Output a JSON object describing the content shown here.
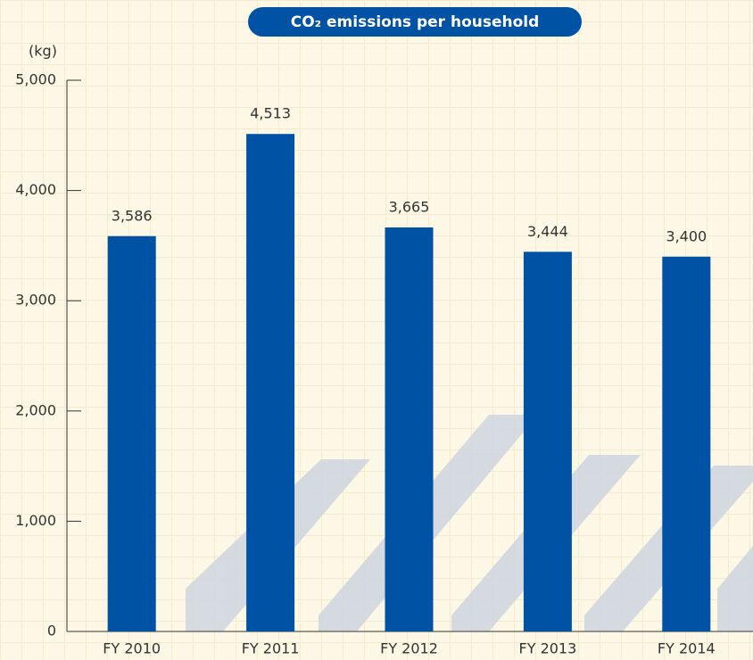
{
  "chart_data": {
    "type": "bar",
    "title": "CO₂ emissions per household",
    "y_label": "(kg)",
    "categories": [
      "FY 2010",
      "FY 2011",
      "FY 2012",
      "FY 2013",
      "FY 2014"
    ],
    "values": [
      3586,
      4513,
      3665,
      3444,
      3400
    ],
    "value_labels": [
      "3,586",
      "4,513",
      "3,665",
      "3,444",
      "3,400"
    ],
    "color": "#0052a4",
    "ylim": [
      0,
      5000
    ],
    "yticks": [
      0,
      {
        "value": 1000,
        "label": "1,000"
      },
      {
        "value": 2000,
        "label": "2,000"
      },
      {
        "value": 3000,
        "label": "3,000"
      },
      {
        "value": 4000,
        "label": "4,000"
      },
      {
        "value": 5000,
        "label": "5,000"
      }
    ]
  }
}
